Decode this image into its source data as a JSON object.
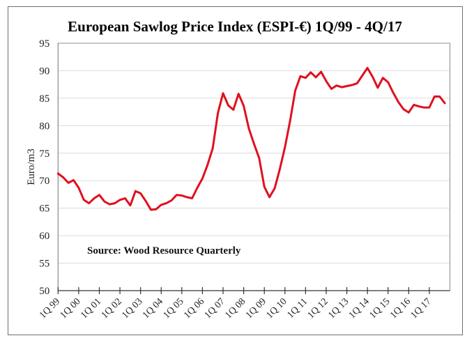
{
  "chart_data": {
    "type": "line",
    "title": "European Sawlog Price Index (ESPI-€) 1Q/99 - 4Q/17",
    "xlabel": "",
    "ylabel": "Euro/m3",
    "ylim": [
      50,
      95
    ],
    "yticks": [
      50,
      55,
      60,
      65,
      70,
      75,
      80,
      85,
      90,
      95
    ],
    "grid": true,
    "legend": "none",
    "x_start": "1Q 99",
    "x_end": "4Q 17",
    "xtick_labels": [
      "1Q 99",
      "1Q 00",
      "1Q 01",
      "1Q 02",
      "1Q 03",
      "1Q 04",
      "1Q 05",
      "1Q 06",
      "1Q 07",
      "1Q 08",
      "1Q 09",
      "1Q 10",
      "1Q 11",
      "1Q 12",
      "1Q 13",
      "1Q 14",
      "1Q 15",
      "1Q 16",
      "1Q 17"
    ],
    "annotation": "Source: Wood Resource Quarterly",
    "series": [
      {
        "name": "ESPI-€",
        "color": "#e0101e",
        "values": [
          71.3,
          70.6,
          69.6,
          70.1,
          68.7,
          66.5,
          65.9,
          66.8,
          67.4,
          66.2,
          65.7,
          65.9,
          66.5,
          66.8,
          65.5,
          68.1,
          67.7,
          66.3,
          64.7,
          64.8,
          65.6,
          65.9,
          66.4,
          67.4,
          67.3,
          67.0,
          66.8,
          68.7,
          70.4,
          72.9,
          75.9,
          82.3,
          85.9,
          83.7,
          82.9,
          85.8,
          83.6,
          79.5,
          76.7,
          74.1,
          68.9,
          67.0,
          68.6,
          72.1,
          76.1,
          80.9,
          86.4,
          89.0,
          88.7,
          89.7,
          88.8,
          89.8,
          88.1,
          86.7,
          87.3,
          87.0,
          87.2,
          87.4,
          87.7,
          89.1,
          90.5,
          88.9,
          86.9,
          88.7,
          87.9,
          86.0,
          84.3,
          83.0,
          82.4,
          83.8,
          83.5,
          83.3,
          83.3,
          85.3,
          85.3,
          84.1
        ]
      }
    ]
  }
}
